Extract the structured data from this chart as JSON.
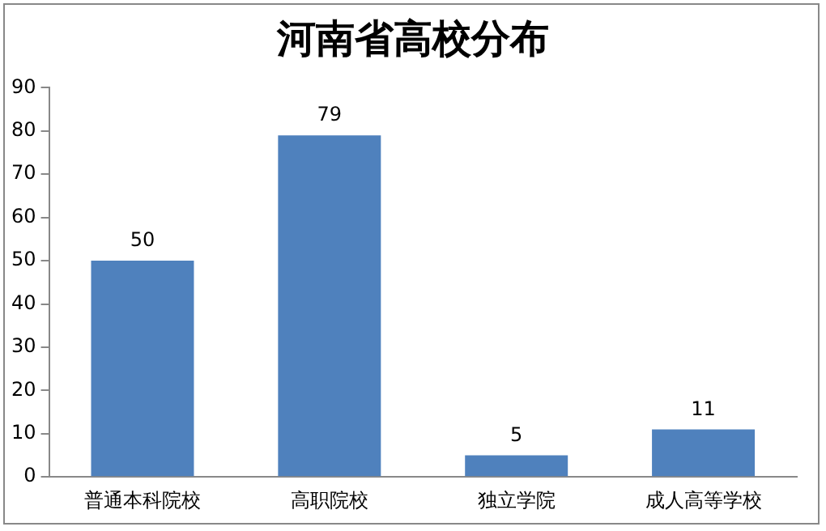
{
  "chart_data": {
    "type": "bar",
    "title": "河南省高校分布",
    "categories": [
      "普通本科院校",
      "高职院校",
      "独立学院",
      "成人高等学校"
    ],
    "values": [
      50,
      79,
      5,
      11
    ],
    "color": "#4f81bd",
    "ylim": [
      0,
      90
    ],
    "yticks": [
      0,
      10,
      20,
      30,
      40,
      50,
      60,
      70,
      80,
      90
    ],
    "grid": false,
    "legend": false,
    "data_labels": true
  }
}
